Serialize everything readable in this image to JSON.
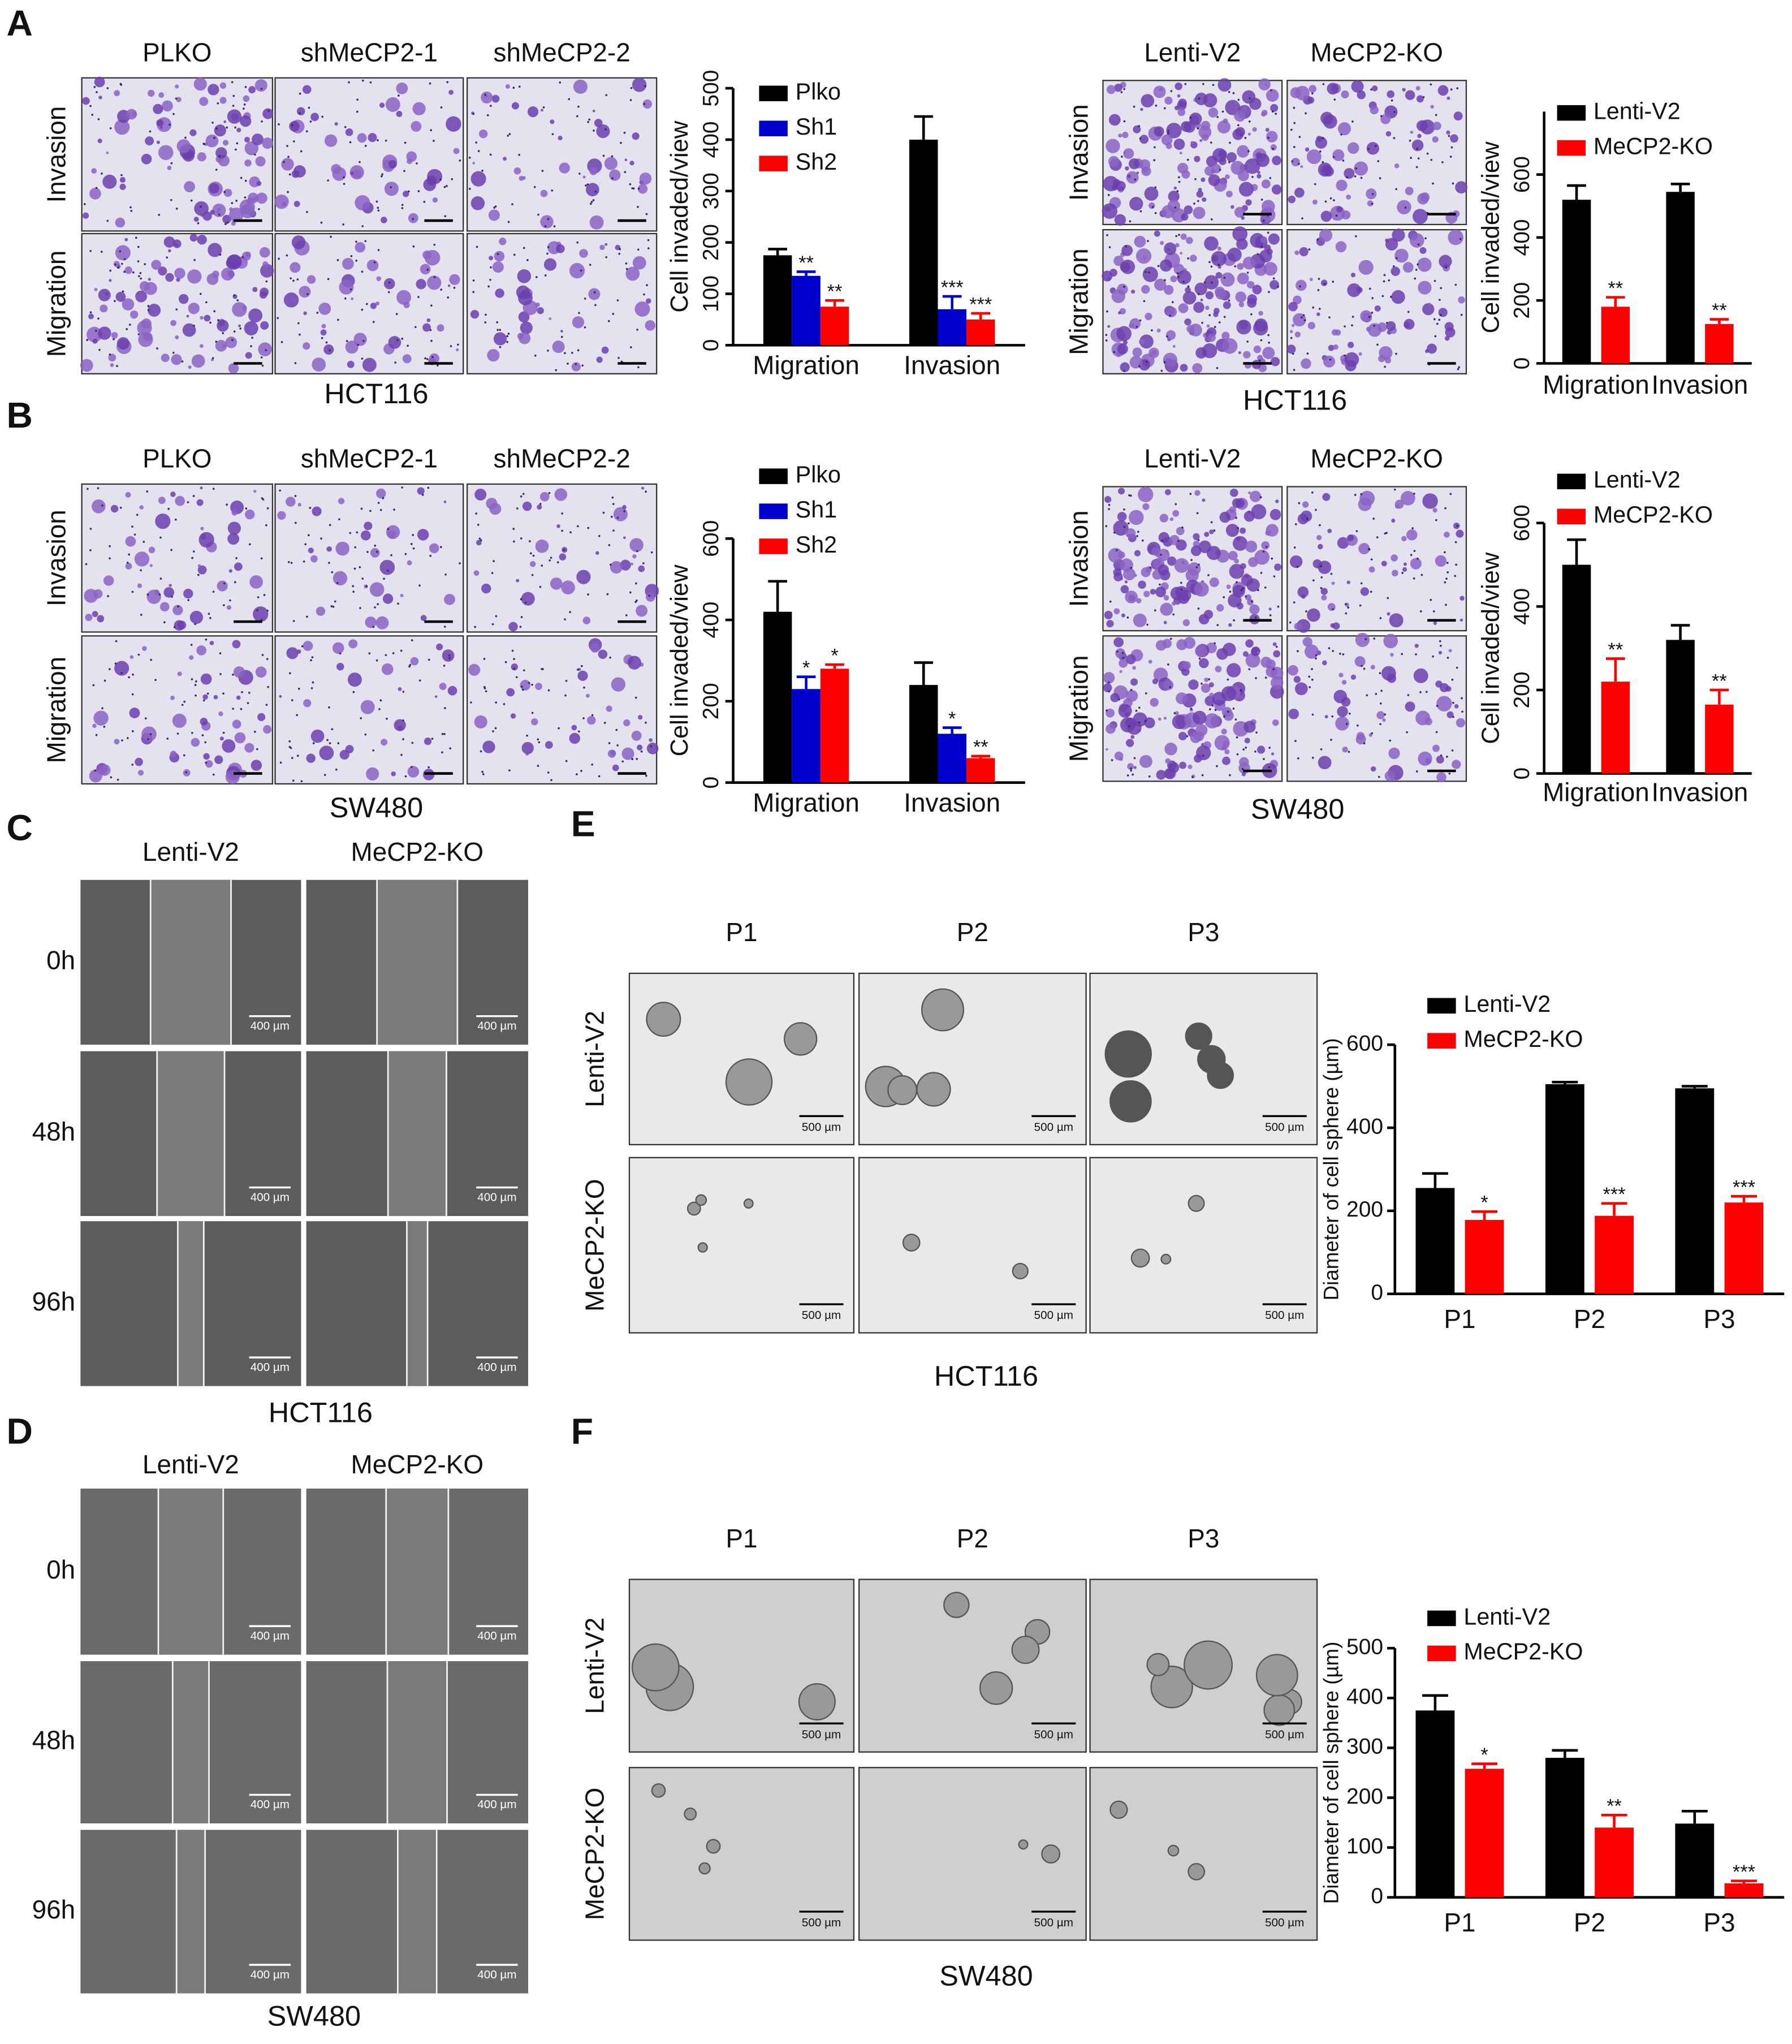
{
  "panel_labels": [
    "A",
    "B",
    "C",
    "D",
    "E",
    "F"
  ],
  "image_grids": [
    {
      "columns": [
        "PLKO",
        "shMeCP2-1",
        "shMeCP2-2"
      ],
      "rows": [
        "Invasion",
        "Migration"
      ],
      "caption": "HCT116"
    },
    {
      "columns": [
        "Lenti-V2",
        "MeCP2-KO"
      ],
      "rows": [
        "Invasion",
        "Migration"
      ],
      "caption": "HCT116"
    },
    {
      "columns": [
        "PLKO",
        "shMeCP2-1",
        "shMeCP2-2"
      ],
      "rows": [
        "Invasion",
        "Migration"
      ],
      "caption": "SW480"
    },
    {
      "columns": [
        "Lenti-V2",
        "MeCP2-KO"
      ],
      "rows": [
        "Invasion",
        "Migration"
      ],
      "caption": "SW480"
    },
    {
      "columns": [
        "Lenti-V2",
        "MeCP2-KO"
      ],
      "rows": [
        "0h",
        "48h",
        "96h"
      ],
      "caption": "HCT116",
      "scale_bar": "400 µm"
    },
    {
      "columns": [
        "Lenti-V2",
        "MeCP2-KO"
      ],
      "rows": [
        "0h",
        "48h",
        "96h"
      ],
      "caption": "SW480",
      "scale_bar": "400 µm"
    },
    {
      "columns": [
        "P1",
        "P2",
        "P3"
      ],
      "rows": [
        "Lenti-V2",
        "MeCP2-KO"
      ],
      "caption": "HCT116",
      "scale_bar": "500 µm"
    },
    {
      "columns": [
        "P1",
        "P2",
        "P3"
      ],
      "rows": [
        "Lenti-V2",
        "MeCP2-KO"
      ],
      "caption": "SW480",
      "scale_bar": "500 µm"
    }
  ],
  "chart_data": [
    {
      "type": "bar",
      "ylabel": "Cell invaded/view",
      "categories": [
        "Migration",
        "Invasion"
      ],
      "series": [
        {
          "name": "Plko",
          "color": "#000000",
          "values": [
            175,
            400
          ],
          "errors": [
            12,
            45
          ]
        },
        {
          "name": "Sh1",
          "color": "#0000cc",
          "values": [
            135,
            70
          ],
          "errors": [
            8,
            25
          ],
          "significance": [
            "**",
            "***"
          ]
        },
        {
          "name": "Sh2",
          "color": "#ff0000",
          "values": [
            75,
            50
          ],
          "errors": [
            12,
            12
          ],
          "significance": [
            "**",
            "***"
          ]
        }
      ],
      "ylim": [
        0,
        500
      ],
      "yticks": [
        0,
        100,
        200,
        300,
        400,
        500
      ]
    },
    {
      "type": "bar",
      "ylabel": "Cell invaded/view",
      "categories": [
        "Migration",
        "Invasion"
      ],
      "series": [
        {
          "name": "Lenti-V2",
          "color": "#000000",
          "values": [
            520,
            545
          ],
          "errors": [
            45,
            25
          ]
        },
        {
          "name": "MeCP2-KO",
          "color": "#ff0000",
          "values": [
            180,
            125
          ],
          "errors": [
            30,
            15
          ],
          "significance": [
            "**",
            "**"
          ]
        }
      ],
      "ylim": [
        0,
        800
      ],
      "yticks": [
        0,
        200,
        400,
        600
      ]
    },
    {
      "type": "bar",
      "ylabel": "Cell invaded/view",
      "categories": [
        "Migration",
        "Invasion"
      ],
      "series": [
        {
          "name": "Plko",
          "color": "#000000",
          "values": [
            420,
            240
          ],
          "errors": [
            75,
            55
          ]
        },
        {
          "name": "Sh1",
          "color": "#0000cc",
          "values": [
            230,
            120
          ],
          "errors": [
            30,
            15
          ],
          "significance": [
            "*",
            "*"
          ]
        },
        {
          "name": "Sh2",
          "color": "#ff0000",
          "values": [
            280,
            60
          ],
          "errors": [
            10,
            5
          ],
          "significance": [
            "*",
            "**"
          ]
        }
      ],
      "ylim": [
        0,
        600
      ],
      "yticks": [
        0,
        200,
        400,
        600
      ]
    },
    {
      "type": "bar",
      "ylabel": "Cell invaded/view",
      "categories": [
        "Migration",
        "Invasion"
      ],
      "series": [
        {
          "name": "Lenti-V2",
          "color": "#000000",
          "values": [
            500,
            320
          ],
          "errors": [
            60,
            35
          ]
        },
        {
          "name": "MeCP2-KO",
          "color": "#ff0000",
          "values": [
            220,
            165
          ],
          "errors": [
            55,
            35
          ],
          "significance": [
            "**",
            "**"
          ]
        }
      ],
      "ylim": [
        0,
        600
      ],
      "yticks": [
        0,
        200,
        400,
        600
      ]
    },
    {
      "type": "bar",
      "ylabel": "Diameter of cell sphere (µm)",
      "categories": [
        "P1",
        "P2",
        "P3"
      ],
      "series": [
        {
          "name": "Lenti-V2",
          "color": "#000000",
          "values": [
            255,
            505,
            495
          ],
          "errors": [
            35,
            5,
            5
          ]
        },
        {
          "name": "MeCP2-KO",
          "color": "#ff0000",
          "values": [
            178,
            188,
            220
          ],
          "errors": [
            20,
            30,
            15
          ],
          "significance": [
            "*",
            "***",
            "***"
          ]
        }
      ],
      "ylim": [
        0,
        600
      ],
      "yticks": [
        0,
        200,
        400,
        600
      ]
    },
    {
      "type": "bar",
      "ylabel": "Diameter of cell sphere (µm)",
      "categories": [
        "P1",
        "P2",
        "P3"
      ],
      "series": [
        {
          "name": "Lenti-V2",
          "color": "#000000",
          "values": [
            375,
            280,
            148
          ],
          "errors": [
            30,
            15,
            25
          ]
        },
        {
          "name": "MeCP2-KO",
          "color": "#ff0000",
          "values": [
            258,
            140,
            28
          ],
          "errors": [
            10,
            25,
            5
          ],
          "significance": [
            "*",
            "**",
            "***"
          ]
        }
      ],
      "ylim": [
        0,
        500
      ],
      "yticks": [
        0,
        100,
        200,
        300,
        400,
        500
      ]
    }
  ]
}
